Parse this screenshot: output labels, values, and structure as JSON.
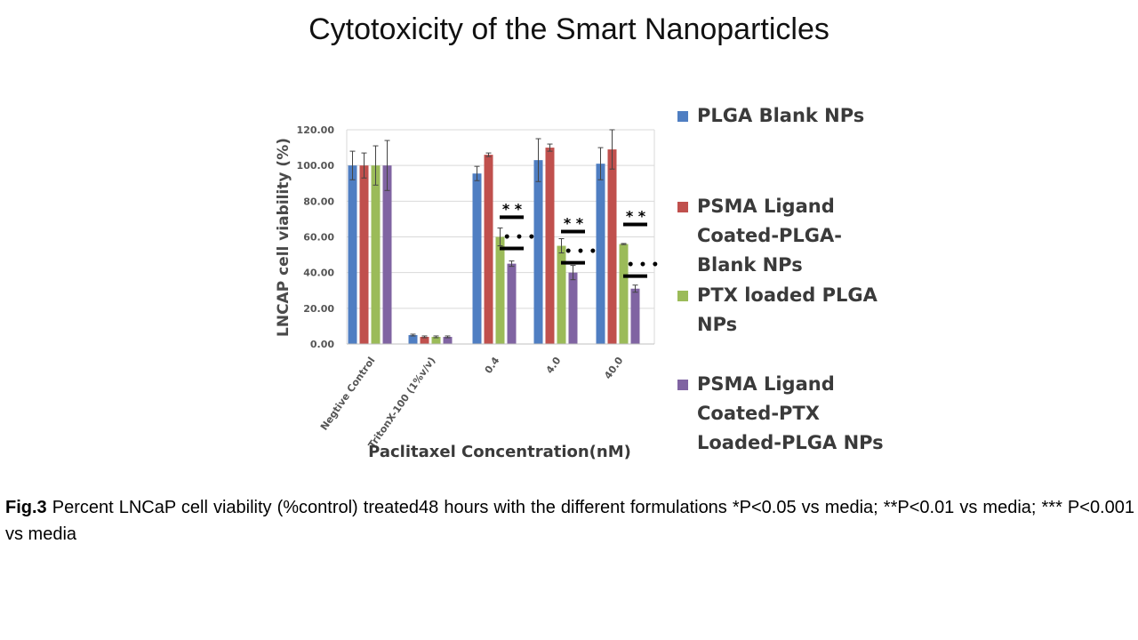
{
  "title": "Cytotoxicity of the Smart Nanoparticles",
  "caption": {
    "label": "Fig.3",
    "text": " Percent LNCaP cell viability (%control) treated48 hours with the different formulations *P<0.05 vs media; **P<0.01 vs media; *** P<0.001 vs media"
  },
  "chart_data": {
    "type": "bar",
    "title": "",
    "xlabel": "Paclitaxel Concentration(nM)",
    "ylabel": "LNCAP cell viability (%)",
    "ylim": [
      0,
      120
    ],
    "yticks": [
      "0.00",
      "20.00",
      "40.00",
      "60.00",
      "80.00",
      "100.00",
      "120.00"
    ],
    "grid": true,
    "legend_position": "right",
    "categories": [
      "Negtive Control",
      "TritonX-100 (1%v/v)",
      "0.4",
      "4.0",
      "40.0"
    ],
    "series": [
      {
        "name": "PLGA Blank NPs",
        "color": "#4f7ec2",
        "values": [
          100,
          5,
          95.5,
          103,
          101
        ],
        "errors": [
          8,
          0.5,
          4,
          12,
          9
        ]
      },
      {
        "name": "PSMA Ligand\nCoated-PLGA-\nBlank NPs",
        "color": "#c0504d",
        "values": [
          100,
          4,
          106,
          110,
          109
        ],
        "errors": [
          7,
          0.5,
          1,
          2,
          11
        ]
      },
      {
        "name": "PTX loaded PLGA\nNPs",
        "color": "#9bbb59",
        "values": [
          100,
          4,
          60,
          55,
          56
        ],
        "errors": [
          11,
          0.5,
          5,
          4,
          0.3
        ]
      },
      {
        "name": "PSMA Ligand\nCoated-PTX\nLoaded-PLGA NPs",
        "color": "#8064a2",
        "values": [
          100,
          4,
          45,
          40,
          31
        ],
        "errors": [
          14,
          0.5,
          1.5,
          4,
          2
        ]
      }
    ],
    "annotations": [
      {
        "category": "0.4",
        "label": "* *",
        "value": 71
      },
      {
        "category": "0.4",
        "label": "• • •",
        "value": 53.5
      },
      {
        "category": "4.0",
        "label": "* *",
        "value": 63
      },
      {
        "category": "4.0",
        "label": "• • •",
        "value": 45.5
      },
      {
        "category": "40.0",
        "label": "* *",
        "value": 67
      },
      {
        "category": "40.0",
        "label": "• • •",
        "value": 38
      }
    ]
  }
}
